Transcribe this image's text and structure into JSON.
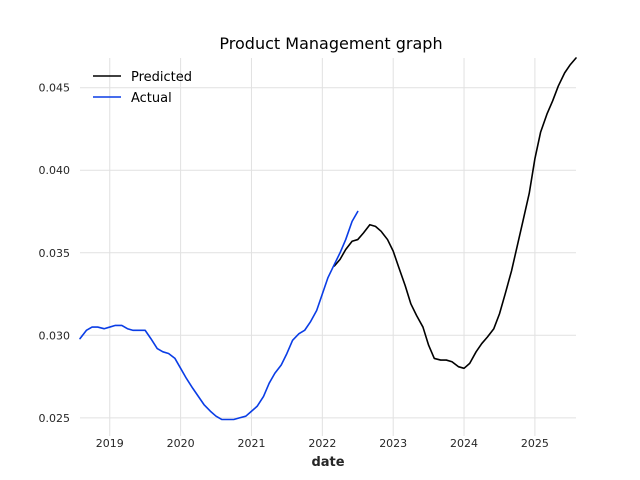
{
  "chart_data": {
    "type": "line",
    "title": "Product Management graph",
    "xlabel": "date",
    "ylabel": "",
    "xlim": [
      2018.58,
      2025.58
    ],
    "ylim": [
      0.0239,
      0.0468
    ],
    "x_ticks": [
      2019,
      2020,
      2021,
      2022,
      2023,
      2024,
      2025
    ],
    "y_ticks": [
      0.025,
      0.03,
      0.035,
      0.04,
      0.045
    ],
    "x_tick_labels": [
      "2019",
      "2020",
      "2021",
      "2022",
      "2023",
      "2024",
      "2025"
    ],
    "y_tick_labels": [
      "0.025",
      "0.030",
      "0.035",
      "0.040",
      "0.045"
    ],
    "grid": true,
    "legend_position": "top-left",
    "series": [
      {
        "name": "Predicted",
        "color": "#000000",
        "x": [
          2022.17,
          2022.25,
          2022.33,
          2022.42,
          2022.5,
          2022.58,
          2022.67,
          2022.75,
          2022.83,
          2022.92,
          2023.0,
          2023.08,
          2023.17,
          2023.25,
          2023.33,
          2023.42,
          2023.5,
          2023.58,
          2023.67,
          2023.75,
          2023.83,
          2023.92,
          2024.0,
          2024.08,
          2024.17,
          2024.25,
          2024.33,
          2024.42,
          2024.5,
          2024.58,
          2024.67,
          2024.75,
          2024.83,
          2024.92,
          2025.0,
          2025.08,
          2025.17,
          2025.25,
          2025.33,
          2025.42,
          2025.5,
          2025.58
        ],
        "y": [
          0.0342,
          0.0346,
          0.0352,
          0.0357,
          0.0358,
          0.0362,
          0.0367,
          0.0366,
          0.0363,
          0.0358,
          0.0351,
          0.0341,
          0.033,
          0.0319,
          0.0312,
          0.0305,
          0.0294,
          0.0286,
          0.0285,
          0.0285,
          0.0284,
          0.0281,
          0.028,
          0.0283,
          0.029,
          0.0295,
          0.0299,
          0.0304,
          0.0313,
          0.0325,
          0.0339,
          0.0354,
          0.0369,
          0.0386,
          0.0407,
          0.0423,
          0.0434,
          0.0442,
          0.0451,
          0.0459,
          0.0464,
          0.0468
        ]
      },
      {
        "name": "Actual",
        "color": "#0a3de6",
        "x": [
          2018.58,
          2018.67,
          2018.75,
          2018.83,
          2018.92,
          2019.0,
          2019.08,
          2019.17,
          2019.25,
          2019.33,
          2019.42,
          2019.5,
          2019.58,
          2019.67,
          2019.75,
          2019.83,
          2019.92,
          2020.0,
          2020.08,
          2020.17,
          2020.25,
          2020.33,
          2020.42,
          2020.5,
          2020.58,
          2020.67,
          2020.75,
          2020.83,
          2020.92,
          2021.0,
          2021.08,
          2021.17,
          2021.25,
          2021.33,
          2021.42,
          2021.5,
          2021.58,
          2021.67,
          2021.75,
          2021.83,
          2021.92,
          2022.0,
          2022.08,
          2022.17,
          2022.25,
          2022.33,
          2022.42,
          2022.5
        ],
        "y": [
          0.0298,
          0.0303,
          0.0305,
          0.0305,
          0.0304,
          0.0305,
          0.0306,
          0.0306,
          0.0304,
          0.0303,
          0.0303,
          0.0303,
          0.0298,
          0.0292,
          0.029,
          0.0289,
          0.0286,
          0.028,
          0.0274,
          0.0268,
          0.0263,
          0.0258,
          0.0254,
          0.0251,
          0.0249,
          0.0249,
          0.0249,
          0.025,
          0.0251,
          0.0254,
          0.0257,
          0.0263,
          0.0271,
          0.0277,
          0.0282,
          0.0289,
          0.0297,
          0.0301,
          0.0303,
          0.0308,
          0.0315,
          0.0325,
          0.0335,
          0.0343,
          0.035,
          0.0358,
          0.0369,
          0.0375
        ]
      }
    ]
  }
}
